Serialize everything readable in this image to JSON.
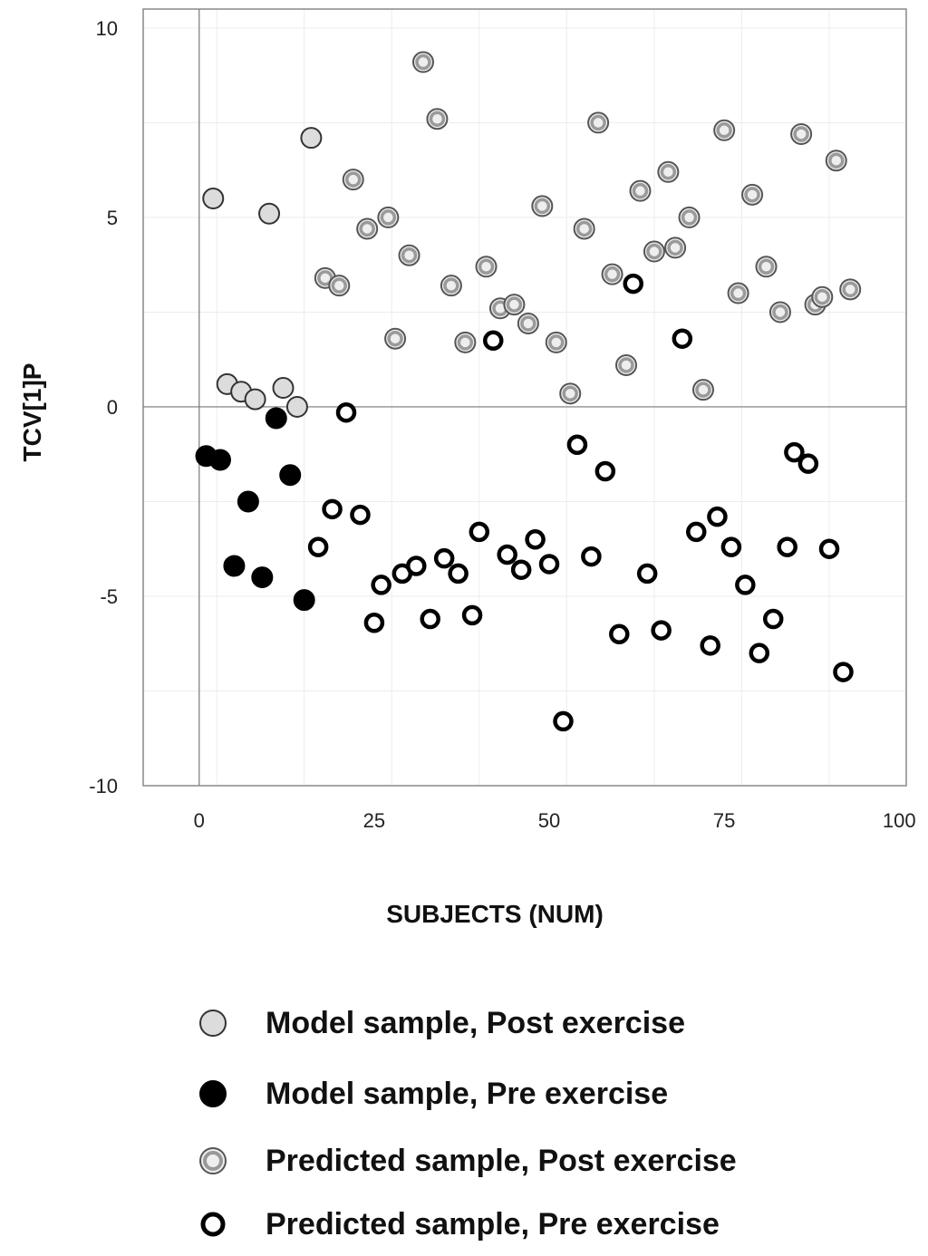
{
  "chart_data": {
    "type": "scatter",
    "xlabel": "SUBJECTS (NUM)",
    "ylabel": "TCV[1]P",
    "xlim": [
      -8,
      101
    ],
    "ylim": [
      -10,
      10.5
    ],
    "x_ticks": [
      "0",
      "25",
      "50",
      "75",
      "100"
    ],
    "y_ticks": [
      "10",
      "5",
      "0",
      "-5",
      "-10"
    ],
    "x_tick_values": [
      0,
      25,
      50,
      75,
      100
    ],
    "y_tick_values": [
      10,
      5,
      0,
      -5,
      -10
    ],
    "grid": true,
    "reference_lines": {
      "x": 0,
      "y": 0
    },
    "legend_position": "bottom",
    "series": [
      {
        "name": "Model sample, Post exercise",
        "style": "light-filled",
        "points": [
          {
            "x": 2,
            "y": 5.5
          },
          {
            "x": 10,
            "y": 5.1
          },
          {
            "x": 16,
            "y": 7.1
          },
          {
            "x": 4,
            "y": 0.6
          },
          {
            "x": 6,
            "y": 0.4
          },
          {
            "x": 8,
            "y": 0.2
          },
          {
            "x": 12,
            "y": 0.5
          },
          {
            "x": 14,
            "y": 0.0
          }
        ]
      },
      {
        "name": "Model sample, Pre exercise",
        "style": "black-filled",
        "points": [
          {
            "x": 1,
            "y": -1.3
          },
          {
            "x": 3,
            "y": -1.4
          },
          {
            "x": 5,
            "y": -4.2
          },
          {
            "x": 7,
            "y": -2.5
          },
          {
            "x": 9,
            "y": -4.5
          },
          {
            "x": 11,
            "y": -0.3
          },
          {
            "x": 13,
            "y": -1.8
          },
          {
            "x": 15,
            "y": -5.1
          }
        ]
      },
      {
        "name": "Predicted sample, Post exercise",
        "style": "gray-ring",
        "points": [
          {
            "x": 18,
            "y": 3.4
          },
          {
            "x": 20,
            "y": 3.2
          },
          {
            "x": 22,
            "y": 6.0
          },
          {
            "x": 24,
            "y": 4.7
          },
          {
            "x": 27,
            "y": 5.0
          },
          {
            "x": 28,
            "y": 1.8
          },
          {
            "x": 30,
            "y": 4.0
          },
          {
            "x": 32,
            "y": 9.1
          },
          {
            "x": 34,
            "y": 7.6
          },
          {
            "x": 36,
            "y": 3.2
          },
          {
            "x": 38,
            "y": 1.7
          },
          {
            "x": 41,
            "y": 3.7
          },
          {
            "x": 43,
            "y": 2.6
          },
          {
            "x": 45,
            "y": 2.7
          },
          {
            "x": 47,
            "y": 2.2
          },
          {
            "x": 49,
            "y": 5.3
          },
          {
            "x": 51,
            "y": 1.7
          },
          {
            "x": 53,
            "y": 0.35
          },
          {
            "x": 55,
            "y": 4.7
          },
          {
            "x": 57,
            "y": 7.5
          },
          {
            "x": 59,
            "y": 3.5
          },
          {
            "x": 61,
            "y": 1.1
          },
          {
            "x": 63,
            "y": 5.7
          },
          {
            "x": 65,
            "y": 4.1
          },
          {
            "x": 67,
            "y": 6.2
          },
          {
            "x": 68,
            "y": 4.2
          },
          {
            "x": 70,
            "y": 5.0
          },
          {
            "x": 72,
            "y": 0.45
          },
          {
            "x": 75,
            "y": 7.3
          },
          {
            "x": 77,
            "y": 3.0
          },
          {
            "x": 79,
            "y": 5.6
          },
          {
            "x": 81,
            "y": 3.7
          },
          {
            "x": 83,
            "y": 2.5
          },
          {
            "x": 86,
            "y": 7.2
          },
          {
            "x": 88,
            "y": 2.7
          },
          {
            "x": 89,
            "y": 2.9
          },
          {
            "x": 91,
            "y": 6.5
          },
          {
            "x": 93,
            "y": 3.1
          }
        ]
      },
      {
        "name": "Predicted sample, Pre exercise",
        "style": "black-ring",
        "points": [
          {
            "x": 17,
            "y": -3.7
          },
          {
            "x": 19,
            "y": -2.7
          },
          {
            "x": 21,
            "y": -0.15
          },
          {
            "x": 23,
            "y": -2.85
          },
          {
            "x": 25,
            "y": -5.7
          },
          {
            "x": 26,
            "y": -4.7
          },
          {
            "x": 29,
            "y": -4.4
          },
          {
            "x": 31,
            "y": -4.2
          },
          {
            "x": 33,
            "y": -5.6
          },
          {
            "x": 35,
            "y": -4.0
          },
          {
            "x": 37,
            "y": -4.4
          },
          {
            "x": 39,
            "y": -5.5
          },
          {
            "x": 40,
            "y": -3.3
          },
          {
            "x": 42,
            "y": 1.75
          },
          {
            "x": 44,
            "y": -3.9
          },
          {
            "x": 46,
            "y": -4.3
          },
          {
            "x": 48,
            "y": -3.5
          },
          {
            "x": 50,
            "y": -4.15
          },
          {
            "x": 52,
            "y": -8.3
          },
          {
            "x": 54,
            "y": -1.0
          },
          {
            "x": 56,
            "y": -3.95
          },
          {
            "x": 58,
            "y": -1.7
          },
          {
            "x": 60,
            "y": -6.0
          },
          {
            "x": 62,
            "y": 3.25
          },
          {
            "x": 64,
            "y": -4.4
          },
          {
            "x": 66,
            "y": -5.9
          },
          {
            "x": 69,
            "y": 1.8
          },
          {
            "x": 71,
            "y": -3.3
          },
          {
            "x": 73,
            "y": -6.3
          },
          {
            "x": 74,
            "y": -2.9
          },
          {
            "x": 76,
            "y": -3.7
          },
          {
            "x": 78,
            "y": -4.7
          },
          {
            "x": 80,
            "y": -6.5
          },
          {
            "x": 82,
            "y": -5.6
          },
          {
            "x": 84,
            "y": -3.7
          },
          {
            "x": 85,
            "y": -1.2
          },
          {
            "x": 87,
            "y": -1.5
          },
          {
            "x": 90,
            "y": -3.75
          },
          {
            "x": 92,
            "y": -7.0
          }
        ]
      }
    ]
  }
}
